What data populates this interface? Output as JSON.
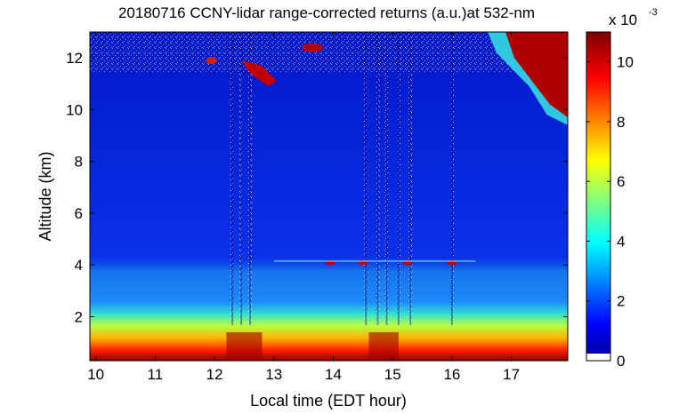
{
  "chart_data": {
    "type": "heatmap",
    "title": "20180716 CCNY-lidar range-corrected returns (a.u.)at 532-nm",
    "xlabel": "Local time (EDT hour)",
    "ylabel": "Altitude (km)",
    "xlim": [
      9.9,
      17.95
    ],
    "ylim": [
      0.3,
      13.0
    ],
    "xticks": [
      10,
      11,
      12,
      13,
      14,
      15,
      16,
      17
    ],
    "yticks": [
      2,
      4,
      6,
      8,
      10,
      12
    ],
    "colorbar": {
      "label_exponent": "x 10",
      "exponent": "-3",
      "range": [
        0,
        11
      ],
      "ticks": [
        0,
        2,
        4,
        6,
        8,
        10
      ],
      "colormap": "jet"
    },
    "features": {
      "boundary_layer_top_km": 1.5,
      "aerosol_layer_km": [
        2.0,
        4.2
      ],
      "cloud_base_km": 4.1,
      "cirrus_km": [
        9.5,
        13.0
      ],
      "max_value_near_surface": 11
    }
  }
}
